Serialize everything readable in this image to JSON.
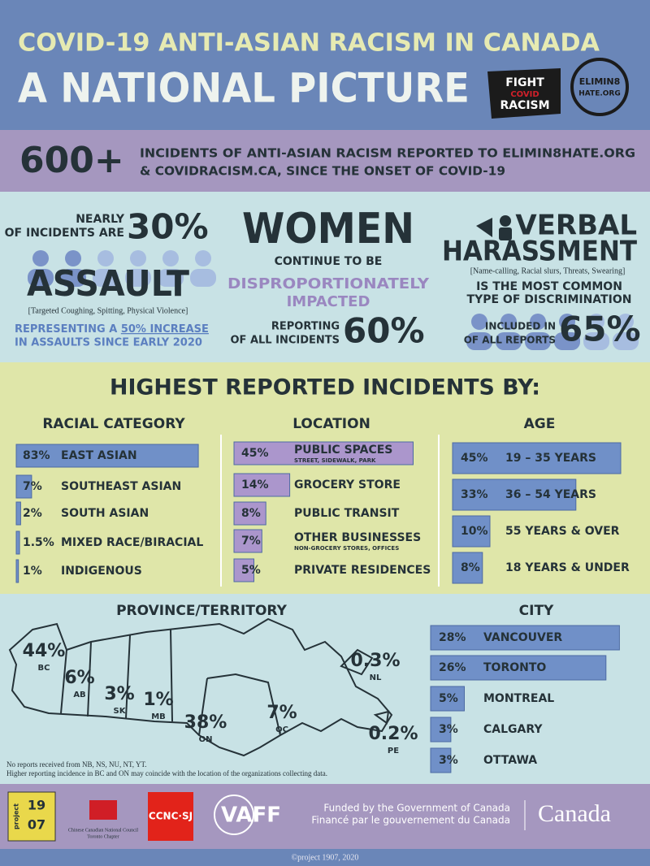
{
  "header": {
    "title_line1": "COVID-19 ANTI-ASIAN RACISM IN CANADA",
    "title_line2": "A NATIONAL PICTURE",
    "logo1": [
      "FIGHT",
      "COVID",
      "RACISM"
    ],
    "logo2": [
      "ELIMIN8",
      "HATE.ORG"
    ]
  },
  "summary": {
    "number": "600+",
    "text_line1": "INCIDENTS OF ANTI-ASIAN RACISM REPORTED TO ELIMIN8HATE.ORG",
    "text_line2": "& COVIDRACISM.CA, SINCE THE ONSET OF COVID-19"
  },
  "assault": {
    "lead_1": "NEARLY",
    "lead_2": "OF INCIDENTS ARE",
    "percent": "30%",
    "headline": "ASSAULT",
    "detail": "[Targeted Coughing, Spitting, Physical Violence]",
    "note_1": "REPRESENTING A",
    "note_highlight": "50% INCREASE",
    "note_2": "IN ASSAULTS SINCE EARLY 2020"
  },
  "women": {
    "headline": "WOMEN",
    "line1": "CONTINUE TO BE",
    "emphasis_1": "DISPROPORTIONATELY",
    "emphasis_2": "IMPACTED",
    "reporting_1": "REPORTING",
    "reporting_2": "OF ALL INCIDENTS",
    "percent": "60%"
  },
  "verbal": {
    "headline_1": "VERBAL",
    "headline_2": "HARASSMENT",
    "detail": "[Name-calling, Racial slurs, Threats, Swearing]",
    "line1": "IS THE MOST COMMON",
    "line2": "TYPE OF DISCRIMINATION",
    "included_1": "INCLUDED IN",
    "included_2": "OF ALL REPORTS",
    "percent": "65%"
  },
  "highest": {
    "title": "HIGHEST REPORTED INCIDENTS BY:",
    "racial": {
      "heading": "RACIAL CATEGORY",
      "items": [
        {
          "value": 83,
          "label": "83%",
          "name": "EAST ASIAN"
        },
        {
          "value": 7,
          "label": "7%",
          "name": "SOUTHEAST ASIAN"
        },
        {
          "value": 2,
          "label": "2%",
          "name": "SOUTH ASIAN"
        },
        {
          "value": 1.5,
          "label": "1.5%",
          "name": "MIXED RACE/BIRACIAL"
        },
        {
          "value": 1,
          "label": "1%",
          "name": "INDIGENOUS"
        }
      ]
    },
    "location": {
      "heading": "LOCATION",
      "items": [
        {
          "value": 45,
          "label": "45%",
          "name": "PUBLIC SPACES",
          "sub": "STREET, SIDEWALK, PARK"
        },
        {
          "value": 14,
          "label": "14%",
          "name": "GROCERY STORE"
        },
        {
          "value": 8,
          "label": "8%",
          "name": "PUBLIC TRANSIT"
        },
        {
          "value": 7,
          "label": "7%",
          "name": "OTHER BUSINESSES",
          "sub": "NON-GROCERY STORES, OFFICES"
        },
        {
          "value": 5,
          "label": "5%",
          "name": "PRIVATE RESIDENCES"
        }
      ]
    },
    "age": {
      "heading": "AGE",
      "items": [
        {
          "value": 45,
          "label": "45%",
          "name": "19 – 35 YEARS"
        },
        {
          "value": 33,
          "label": "33%",
          "name": "36 – 54 YEARS"
        },
        {
          "value": 10,
          "label": "10%",
          "name": "55 YEARS & OVER"
        },
        {
          "value": 8,
          "label": "8%",
          "name": "18 YEARS & UNDER"
        }
      ]
    }
  },
  "province": {
    "heading": "PROVINCE/TERRITORY",
    "regions": [
      {
        "value": 44,
        "label": "44%",
        "code": "BC"
      },
      {
        "value": 6,
        "label": "6%",
        "code": "AB"
      },
      {
        "value": 3,
        "label": "3%",
        "code": "SK"
      },
      {
        "value": 1,
        "label": "1%",
        "code": "MB"
      },
      {
        "value": 38,
        "label": "38%",
        "code": "ON"
      },
      {
        "value": 7,
        "label": "7%",
        "code": "QC"
      },
      {
        "value": 0.3,
        "label": "0.3%",
        "code": "NL"
      },
      {
        "value": 0.2,
        "label": "0.2%",
        "code": "PE"
      }
    ],
    "note_1": "No reports received from NB, NS, NU, NT, YT.",
    "note_2": "Higher reporting incidence in BC and ON may coincide with the location of the organizations collecting data."
  },
  "city": {
    "heading": "CITY",
    "items": [
      {
        "value": 28,
        "label": "28%",
        "name": "VANCOUVER"
      },
      {
        "value": 26,
        "label": "26%",
        "name": "TORONTO"
      },
      {
        "value": 5,
        "label": "5%",
        "name": "MONTREAL"
      },
      {
        "value": 3,
        "label": "3%",
        "name": "CALGARY"
      },
      {
        "value": 3,
        "label": "3%",
        "name": "OTTAWA"
      }
    ]
  },
  "footer": {
    "logo_project": [
      "project",
      "19",
      "07"
    ],
    "logo_cccnc": [
      "Chinese Canadian National Council",
      "Toronto Chapter"
    ],
    "logo_ccncsj": "CCNC·SJ",
    "logo_vaff": "VAFF",
    "funded_en": "Funded by the Government of Canada",
    "funded_fr": "Financé par le gouvernement du Canada",
    "canada": "Canada",
    "copyright": "©project 1907, 2020"
  }
}
